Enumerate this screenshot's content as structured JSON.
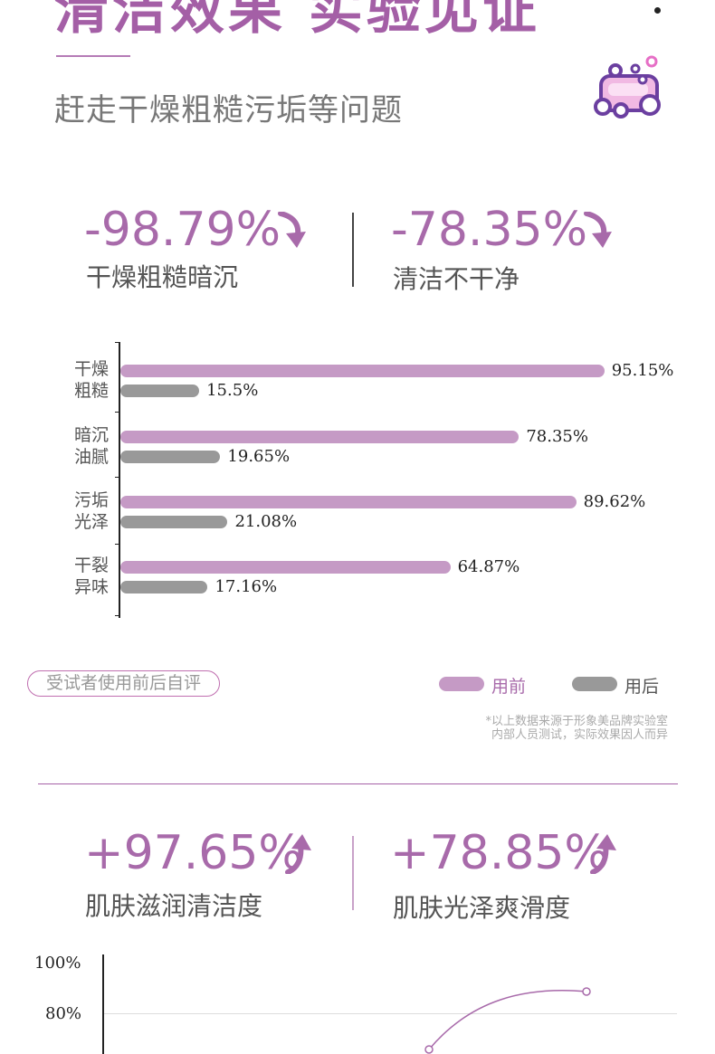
{
  "header": {
    "title": "清洁效果 实验见证",
    "subtitle": "赶走干燥粗糙污垢等问题",
    "icon": "soap-bubbles-icon"
  },
  "stats_top": [
    {
      "value": "-98.79%",
      "label": "干燥粗糙暗沉",
      "direction": "down"
    },
    {
      "value": "-78.35%",
      "label": "清洁不干净",
      "direction": "down"
    }
  ],
  "chart_data": [
    {
      "type": "bar",
      "orientation": "horizontal",
      "categories": [
        "干燥\n粗糙",
        "暗沉\n油腻",
        "污垢\n光泽",
        "干裂\n异味"
      ],
      "category_lines": [
        [
          "干燥",
          "粗糙"
        ],
        [
          "暗沉",
          "油腻"
        ],
        [
          "污垢",
          "光泽"
        ],
        [
          "干裂",
          "异味"
        ]
      ],
      "series": [
        {
          "name": "用前",
          "values": [
            95.15,
            78.35,
            89.62,
            64.87
          ],
          "labels": [
            "95.15%",
            "78.35%",
            "89.62%",
            "64.87%"
          ],
          "color": "#c59ac5"
        },
        {
          "name": "用后",
          "values": [
            15.5,
            19.65,
            21.08,
            17.16
          ],
          "labels": [
            "15.5%",
            "19.65%",
            "21.08%",
            "17.16%"
          ],
          "color": "#999999"
        }
      ],
      "xlim": [
        0,
        100
      ],
      "legend": "bottom-right",
      "annotation": "受试者使用前后自评",
      "note_lines": [
        "*以上数据来源于形象美品牌实验室",
        "内部人员测试，实际效果因人而异"
      ]
    },
    {
      "type": "line",
      "y_ticks": [
        "100%",
        "80%"
      ],
      "ylim": [
        70,
        100
      ],
      "grid": true
    }
  ],
  "stats_bottom": [
    {
      "value": "+97.65%",
      "label": "肌肤滋润清洁度",
      "direction": "up"
    },
    {
      "value": "+78.85%",
      "label": "肌肤光泽爽滑度",
      "direction": "up"
    }
  ],
  "colors": {
    "accent": "#a86aaa",
    "before": "#c59ac5",
    "after": "#999999"
  }
}
